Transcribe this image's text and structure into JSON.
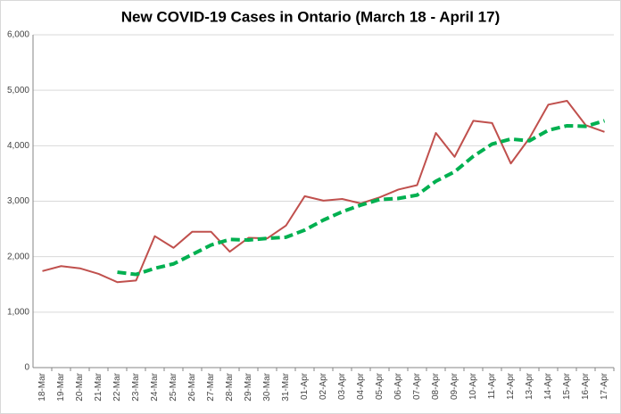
{
  "chart_data": {
    "type": "line",
    "title": "New COVID-19 Cases in Ontario (March 18 - April 17)",
    "categories": [
      "18-Mar",
      "19-Mar",
      "20-Mar",
      "21-Mar",
      "22-Mar",
      "23-Mar",
      "24-Mar",
      "25-Mar",
      "26-Mar",
      "27-Mar",
      "28-Mar",
      "29-Mar",
      "30-Mar",
      "31-Mar",
      "01-Apr",
      "02-Apr",
      "03-Apr",
      "04-Apr",
      "05-Apr",
      "06-Apr",
      "07-Apr",
      "08-Apr",
      "09-Apr",
      "10-Apr",
      "11-Apr",
      "12-Apr",
      "13-Apr",
      "14-Apr",
      "15-Apr",
      "16-Apr",
      "17-Apr"
    ],
    "series": [
      {
        "color": "#c0504d",
        "dashed": false,
        "values": [
          1740,
          1830,
          1790,
          1690,
          1540,
          1570,
          2370,
          2160,
          2450,
          2450,
          2090,
          2340,
          2330,
          2560,
          3090,
          3010,
          3040,
          2960,
          3070,
          3210,
          3290,
          4230,
          3800,
          4450,
          4410,
          3680,
          4140,
          4740,
          4810,
          4370,
          4250
        ]
      },
      {
        "color": "#00b050",
        "dashed": true,
        "values": [
          null,
          null,
          null,
          null,
          1720,
          1680,
          1790,
          1870,
          2040,
          2210,
          2310,
          2300,
          2330,
          2350,
          2480,
          2660,
          2810,
          2930,
          3030,
          3050,
          3110,
          3360,
          3530,
          3810,
          4030,
          4120,
          4090,
          4280,
          4360,
          4350,
          4450
        ]
      }
    ],
    "ylim": [
      0,
      6000
    ],
    "yticks": [
      0,
      {
        "value": 1000,
        "label": "1,000"
      },
      {
        "value": 2000,
        "label": "2,000"
      },
      {
        "value": 3000,
        "label": "3,000"
      },
      {
        "value": 4000,
        "label": "4,000"
      },
      {
        "value": 5000,
        "label": "5,000"
      },
      {
        "value": 6000,
        "label": "6,000"
      }
    ],
    "grid": true
  }
}
